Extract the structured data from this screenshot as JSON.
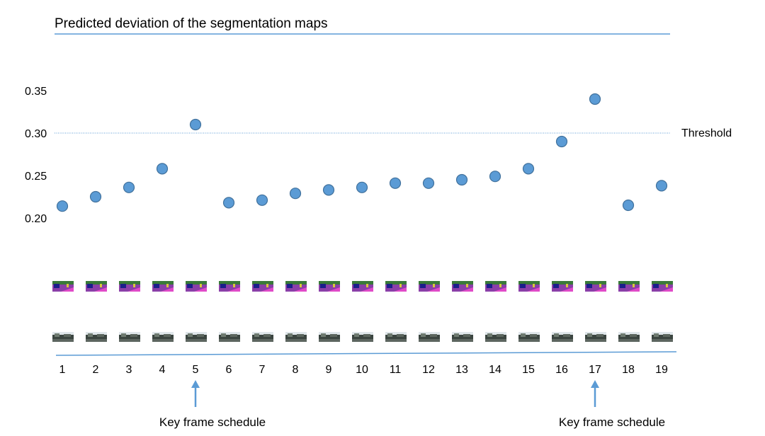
{
  "chart_data": {
    "type": "scatter",
    "title": "Predicted deviation of the segmentation maps",
    "x": [
      1,
      2,
      3,
      4,
      5,
      6,
      7,
      8,
      9,
      10,
      11,
      12,
      13,
      14,
      15,
      16,
      17,
      18,
      19
    ],
    "y": [
      0.214,
      0.225,
      0.236,
      0.258,
      0.31,
      0.218,
      0.221,
      0.229,
      0.233,
      0.236,
      0.241,
      0.241,
      0.245,
      0.249,
      0.258,
      0.29,
      0.34,
      0.215,
      0.238
    ],
    "ylim": [
      0.2,
      0.35
    ],
    "yticks": [
      "0.35",
      "0.30",
      "0.25",
      "0.20"
    ],
    "xticks": [
      "1",
      "2",
      "3",
      "4",
      "5",
      "6",
      "7",
      "8",
      "9",
      "10",
      "11",
      "12",
      "13",
      "14",
      "15",
      "16",
      "17",
      "18",
      "19"
    ],
    "threshold": {
      "value": 0.3,
      "label": "Threshold"
    },
    "key_frames": [
      {
        "x": 5,
        "label": "Key frame schedule"
      },
      {
        "x": 17,
        "label": "Key frame schedule"
      }
    ],
    "colors": {
      "marker": "#5b9bd5",
      "marker_edge": "#41719c",
      "line": "#5b9bd5"
    },
    "grid": false
  }
}
